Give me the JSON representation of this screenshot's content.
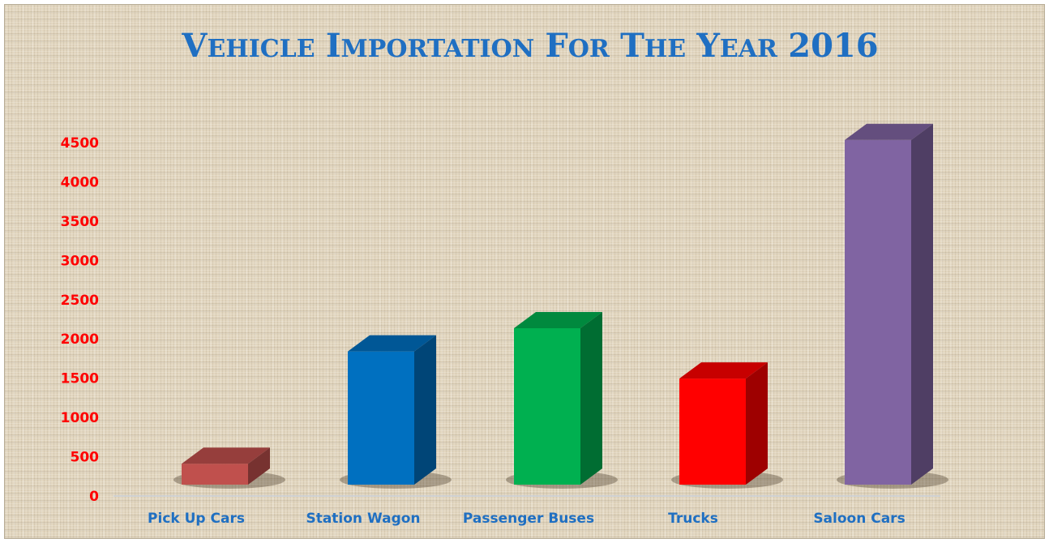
{
  "chart_data": {
    "type": "bar",
    "title": "Vehicle Importation For The Year 2016",
    "categories": [
      "Pick Up Cars",
      "Station Wagon",
      "Passenger Buses",
      "Trucks",
      "Saloon Cars"
    ],
    "values": [
      270,
      1720,
      2020,
      1370,
      4450
    ],
    "yticks": [
      0,
      500,
      1000,
      1500,
      2000,
      2500,
      3000,
      3500,
      4000,
      4500
    ],
    "ylim": [
      0,
      4500
    ],
    "colors": [
      "#c0504d",
      "#0070c0",
      "#00b050",
      "#ff0000",
      "#8064a2"
    ],
    "title_color": "#1f6fc2",
    "ytick_color": "#ff0000",
    "xtick_color": "#1f6fc2",
    "grid": false,
    "legend": false,
    "style": "3d-column"
  }
}
